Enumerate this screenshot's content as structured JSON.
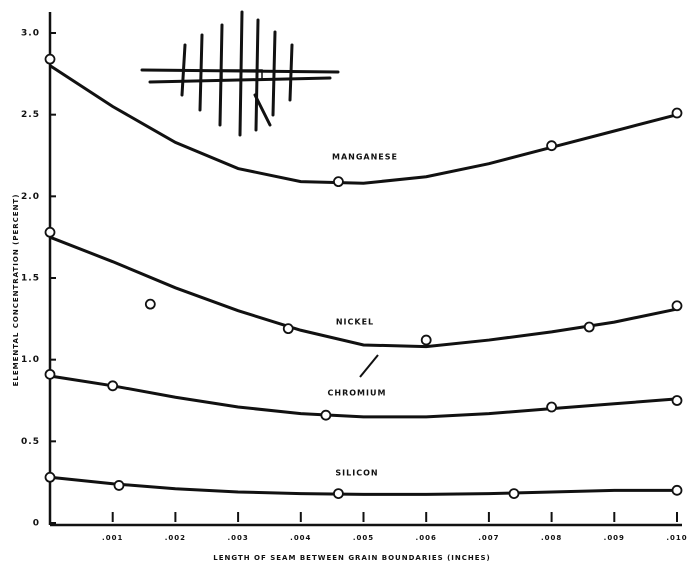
{
  "chart_data": {
    "type": "scatter",
    "xlabel": "LENGTH OF SEAM BETWEEN GRAIN BOUNDARIES (INCHES)",
    "ylabel": "ELEMENTAL CONCENTRATION (PERCENT)",
    "xlim": [
      0,
      0.01
    ],
    "ylim": [
      0,
      3.0
    ],
    "xticks": [
      {
        "value": 0.001,
        "label": ".001"
      },
      {
        "value": 0.002,
        "label": ".002"
      },
      {
        "value": 0.003,
        "label": ".003"
      },
      {
        "value": 0.004,
        "label": ".004"
      },
      {
        "value": 0.005,
        "label": ".005"
      },
      {
        "value": 0.006,
        "label": ".006"
      },
      {
        "value": 0.007,
        "label": ".007"
      },
      {
        "value": 0.008,
        "label": ".008"
      },
      {
        "value": 0.009,
        "label": ".009"
      },
      {
        "value": 0.01,
        "label": ".010"
      }
    ],
    "yticks": [
      0,
      {
        "value": 0.5,
        "label": "0.5"
      },
      {
        "value": 1.0,
        "label": "1.0"
      },
      {
        "value": 1.5,
        "label": "1.5"
      },
      {
        "value": 2.0,
        "label": "2.0"
      },
      {
        "value": 2.5,
        "label": "2.5"
      },
      {
        "value": 3.0,
        "label": "3.0"
      }
    ],
    "grid": false,
    "color": "#111111",
    "curve_x": [
      0,
      0.001,
      0.002,
      0.003,
      0.004,
      0.005,
      0.006,
      0.007,
      0.008,
      0.009,
      0.01
    ],
    "series": [
      {
        "name": "MANGANESE",
        "color": "#111111",
        "x": [
          0,
          0.0046,
          0.008,
          0.01
        ],
        "values": [
          2.84,
          2.09,
          2.31,
          2.51
        ],
        "curve": [
          2.8,
          2.55,
          2.33,
          2.17,
          2.09,
          2.08,
          2.12,
          2.2,
          2.3,
          2.4,
          2.5
        ]
      },
      {
        "name": "NICKEL",
        "color": "#111111",
        "x": [
          0,
          0.0016,
          0.0038,
          0.006,
          0.0086,
          0.01
        ],
        "values": [
          1.78,
          1.34,
          1.19,
          1.12,
          1.2,
          1.33
        ],
        "curve": [
          1.75,
          1.6,
          1.44,
          1.3,
          1.18,
          1.09,
          1.08,
          1.12,
          1.17,
          1.23,
          1.31
        ]
      },
      {
        "name": "CHROMIUM",
        "color": "#111111",
        "x": [
          0,
          0.001,
          0.0044,
          0.008,
          0.01
        ],
        "values": [
          0.91,
          0.84,
          0.66,
          0.71,
          0.75
        ],
        "curve": [
          0.9,
          0.84,
          0.77,
          0.71,
          0.67,
          0.65,
          0.65,
          0.67,
          0.7,
          0.73,
          0.76
        ]
      },
      {
        "name": "SILICON",
        "color": "#111111",
        "x": [
          0,
          0.0011,
          0.0046,
          0.0074,
          0.01
        ],
        "values": [
          0.28,
          0.23,
          0.18,
          0.18,
          0.2
        ],
        "curve": [
          0.28,
          0.24,
          0.21,
          0.19,
          0.18,
          0.175,
          0.175,
          0.18,
          0.19,
          0.2,
          0.2
        ]
      }
    ]
  }
}
